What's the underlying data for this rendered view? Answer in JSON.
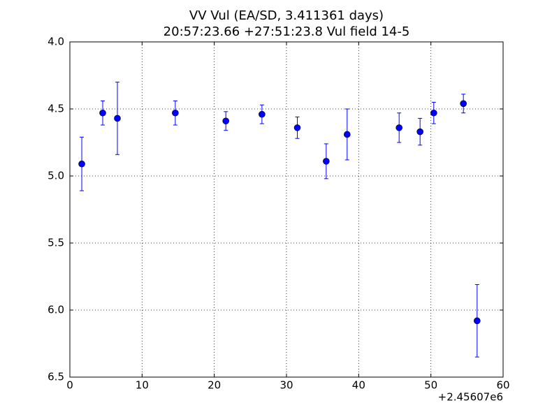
{
  "chart_data": {
    "type": "errorbar",
    "title": "VV Vul (EA/SD, 3.411361 days)",
    "subtitle": "20:57:23.66 +27:51:23.8 Vul field 14-5",
    "x_offset_label": "+2.45607e6",
    "xlim": [
      0,
      60
    ],
    "xticks": [
      0,
      10,
      20,
      30,
      40,
      50,
      60
    ],
    "ylim": [
      6.5,
      4.0
    ],
    "yticks": [
      {
        "value": 4.0,
        "label": "4.0"
      },
      {
        "value": 4.5,
        "label": "4.5"
      },
      {
        "value": 5.0,
        "label": "5.0"
      },
      {
        "value": 5.5,
        "label": "5.5"
      },
      {
        "value": 6.0,
        "label": "6.0"
      },
      {
        "value": 6.5,
        "label": "6.5"
      }
    ],
    "grid": true,
    "series": [
      {
        "color": "#0000ff",
        "x": [
          1.65,
          4.55,
          6.58,
          14.6,
          21.6,
          26.6,
          31.5,
          35.5,
          38.4,
          45.6,
          48.5,
          50.4,
          54.5,
          56.4
        ],
        "values": [
          4.91,
          4.53,
          4.57,
          4.53,
          4.59,
          4.54,
          4.64,
          4.89,
          4.69,
          4.64,
          4.67,
          4.53,
          4.46,
          6.08
        ],
        "errors": [
          0.2,
          0.09,
          0.27,
          0.09,
          0.07,
          0.07,
          0.08,
          0.13,
          0.19,
          0.11,
          0.1,
          0.08,
          0.07,
          0.27
        ]
      }
    ]
  }
}
